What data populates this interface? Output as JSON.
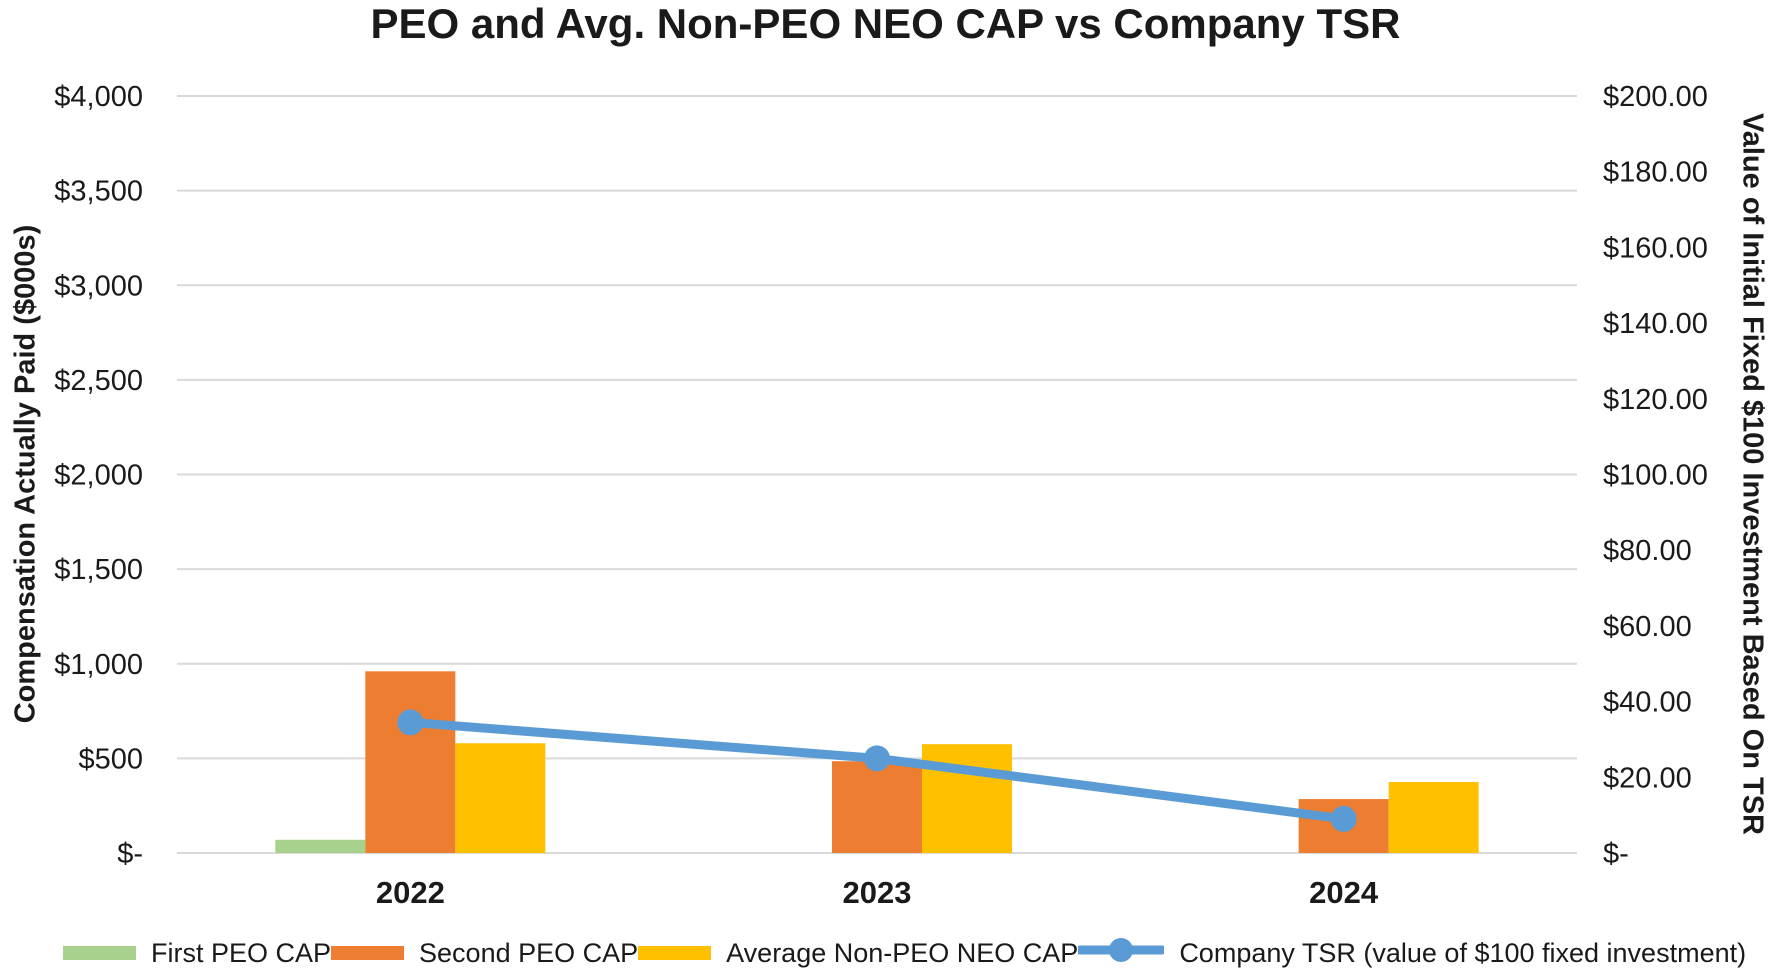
{
  "chart_data": {
    "type": "combo-bar-line",
    "title": "PEO and Avg. Non-PEO NEO CAP vs Company TSR",
    "categories": [
      "2022",
      "2023",
      "2024"
    ],
    "bar_series": [
      {
        "name": "First PEO CAP",
        "color": "#a9d18e",
        "values": [
          70,
          null,
          null
        ]
      },
      {
        "name": "Second PEO CAP",
        "color": "#ed7d31",
        "values": [
          960,
          485,
          285
        ]
      },
      {
        "name": "Average Non-PEO NEO CAP",
        "color": "#ffc000",
        "values": [
          580,
          575,
          375
        ]
      }
    ],
    "line_series": [
      {
        "name": "Company TSR (value of $100 fixed investment)",
        "color": "#5b9bd5",
        "axis": "right",
        "values": [
          34.5,
          25,
          9
        ]
      }
    ],
    "y_left_axis": {
      "label": "Compensation Actually Paid ($000s)",
      "min": 0,
      "max": 4000,
      "tick_step": 500,
      "tick_labels": [
        "$-",
        "$500",
        "$1,000",
        "$1,500",
        "$2,000",
        "$2,500",
        "$3,000",
        "$3,500",
        "$4,000"
      ]
    },
    "y_right_axis": {
      "label": "Value of Initial Fixed $100 Investment Based On TSR",
      "min": 0,
      "max": 200,
      "tick_step": 20,
      "tick_labels": [
        "$-",
        "$20.00",
        "$40.00",
        "$60.00",
        "$80.00",
        "$100.00",
        "$120.00",
        "$140.00",
        "$160.00",
        "$180.00",
        "$200.00"
      ]
    },
    "grid": true,
    "gridline_color": "#d9d9d9",
    "legend_position": "bottom"
  }
}
